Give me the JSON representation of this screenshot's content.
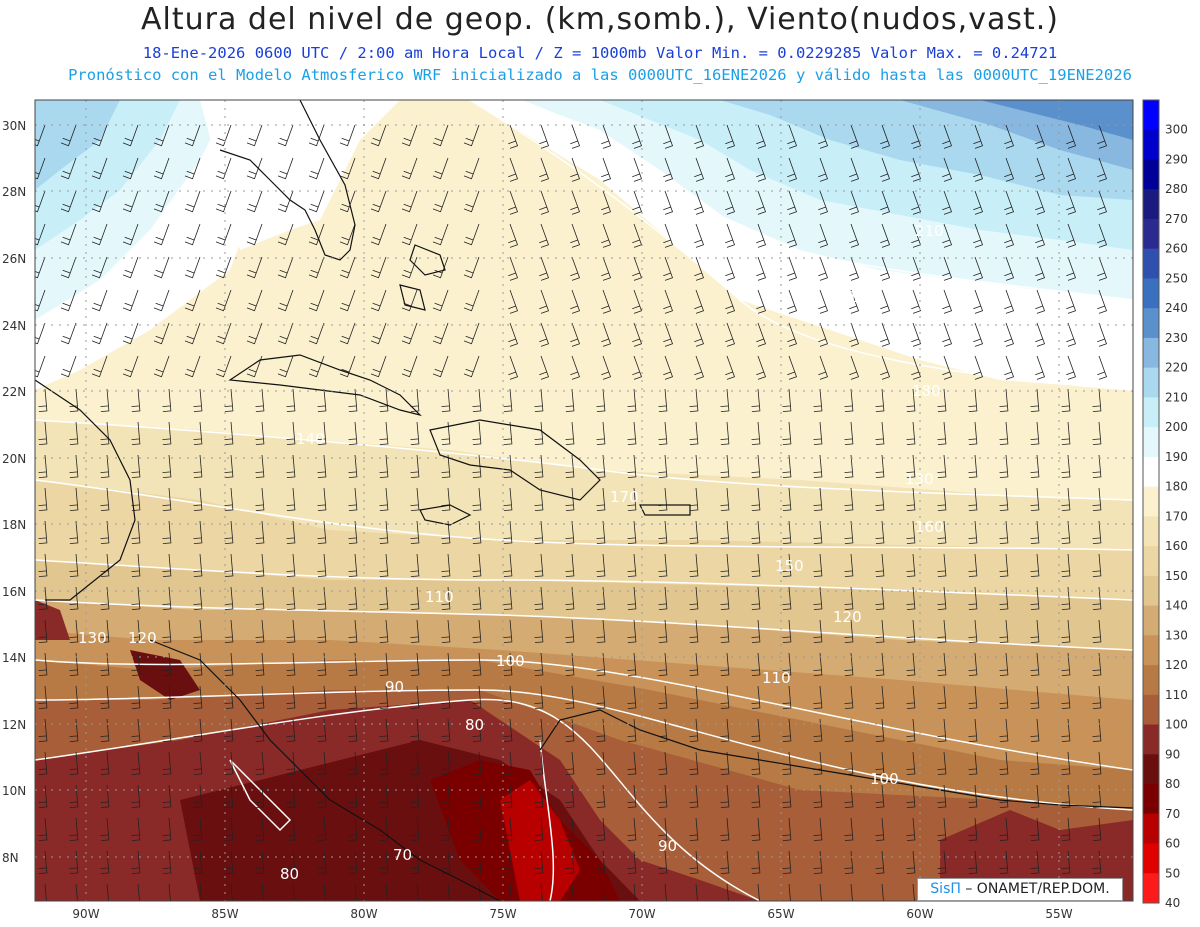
{
  "header": {
    "title": "Altura del nivel de geop. (km,somb.), Viento(nudos,vast.)",
    "subtitle": "18-Ene-2026  0600 UTC / 2:00 am Hora Local / Z = 1000mb  Valor Min. = 0.0229285  Valor Max. = 0.24721",
    "forecast_info": "Pronóstico con el Modelo Atmosferico WRF inicializado a las 0000UTC_16ENE2026 y válido hasta las  0000UTC_19ENE2026"
  },
  "map": {
    "lat_labels": [
      "30N",
      "28N",
      "26N",
      "24N",
      "22N",
      "20N",
      "18N",
      "16N",
      "14N",
      "12N",
      "10N",
      "8N"
    ],
    "lon_labels": [
      "90W",
      "85W",
      "80W",
      "75W",
      "70W",
      "65W",
      "60W",
      "55W"
    ],
    "contour_labels": [
      "210",
      "190",
      "180",
      "140",
      "130",
      "170",
      "160",
      "150",
      "110",
      "120",
      "130",
      "120",
      "100",
      "110",
      "90",
      "80",
      "70",
      "80",
      "100",
      "90"
    ],
    "colorbar": {
      "levels": [
        "300",
        "290",
        "280",
        "270",
        "260",
        "250",
        "240",
        "230",
        "220",
        "210",
        "200",
        "190",
        "180",
        "170",
        "160",
        "150",
        "140",
        "130",
        "120",
        "110",
        "100",
        "90",
        "80",
        "70",
        "60",
        "50",
        "40"
      ],
      "colors": [
        "#0000ff",
        "#0000cc",
        "#000099",
        "#1a1a80",
        "#2a2a90",
        "#3050b0",
        "#3a70c0",
        "#5a90cc",
        "#88b8e0",
        "#aad8ef",
        "#c8eef8",
        "#e4f8fc",
        "#ffffff",
        "#fbf1cf",
        "#f3e4b8",
        "#ecd6a4",
        "#e2c690",
        "#d5ab74",
        "#c89258",
        "#b87a44",
        "#a85e38",
        "#8a2a28",
        "#6a0f10",
        "#7a0000",
        "#b80000",
        "#e00000",
        "#ff1a1a"
      ]
    }
  },
  "credit": {
    "brand": "SisΠ",
    "text": " – ONAMET/REP.DOM."
  }
}
